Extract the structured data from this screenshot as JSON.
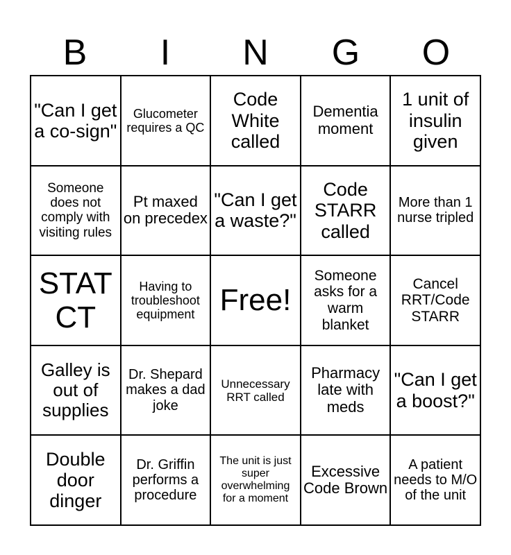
{
  "header": [
    "B",
    "I",
    "N",
    "G",
    "O"
  ],
  "cells": [
    "\"Can I get a co-sign\"",
    "Glucometer requires a QC",
    "Code White called",
    "Dementia moment",
    "1 unit of insulin given",
    "Someone does not comply with visiting rules",
    "Pt maxed on precedex",
    "\"Can I get a waste?\"",
    "Code STARR called",
    "More than 1 nurse tripled",
    "STAT CT",
    "Having to troubleshoot equipment",
    "Free!",
    "Someone asks for a warm blanket",
    "Cancel RRT/Code STARR",
    "Galley is out of supplies",
    "Dr. Shepard makes a dad joke",
    "Unnecessary RRT called",
    "Pharmacy late with meds",
    "\"Can I get a boost?\"",
    "Double door dinger",
    "Dr. Griffin performs a procedure",
    "The unit is just super overwhelming for a moment",
    "Excessive Code Brown",
    "A patient needs to M/O of the unit"
  ]
}
